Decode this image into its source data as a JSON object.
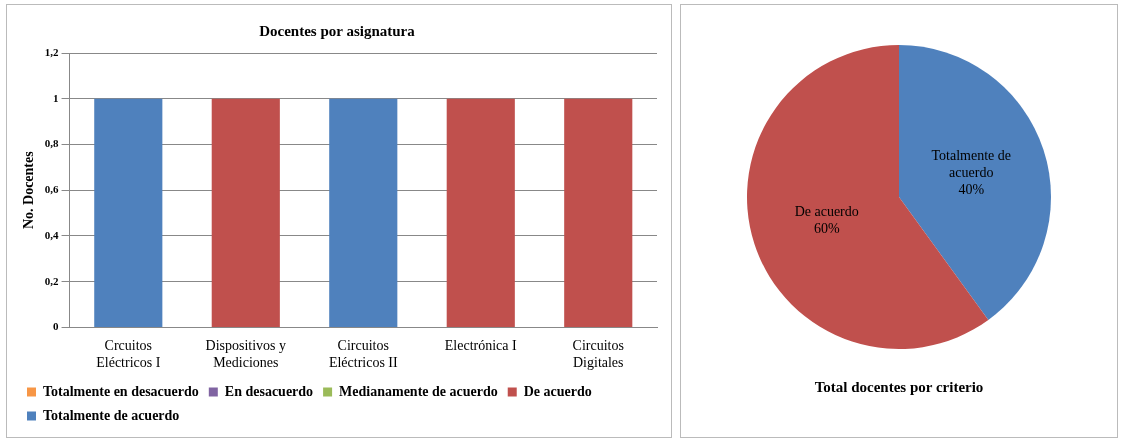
{
  "chart_data": [
    {
      "type": "bar",
      "title": "Docentes por asignatura",
      "ylabel": "No. Docentes",
      "categories": [
        "Crcuitos Eléctricos I",
        "Dispositivos y Mediciones",
        "Circuitos Eléctricos II",
        "Electrónica I",
        "Circuitos Digitales"
      ],
      "stacked": true,
      "series": [
        {
          "name": "Totalmente en desacuerdo",
          "color": "#f79646",
          "values": [
            null,
            null,
            null,
            null,
            null
          ]
        },
        {
          "name": "En desacuerdo",
          "color": "#8064a2",
          "values": [
            null,
            null,
            null,
            null,
            null
          ]
        },
        {
          "name": "Medianamente de acuerdo",
          "color": "#9bbb59",
          "values": [
            null,
            null,
            null,
            null,
            null
          ]
        },
        {
          "name": "De acuerdo",
          "color": "#c0504d",
          "values": [
            null,
            1,
            null,
            1,
            1
          ]
        },
        {
          "name": "Totalmente de acuerdo",
          "color": "#4f81bd",
          "values": [
            1,
            null,
            1,
            null,
            null
          ]
        }
      ],
      "ylim": [
        0,
        1.2
      ],
      "yticks": [
        0,
        {
          "value": 0.2,
          "label": "0,2"
        },
        {
          "value": 0.4,
          "label": "0,4"
        },
        {
          "value": 0.6,
          "label": "0,6"
        },
        {
          "value": 0.8,
          "label": "0,8"
        },
        1,
        {
          "value": 1.2,
          "label": "1,2"
        }
      ],
      "grid": "y",
      "legend": "bottom"
    },
    {
      "type": "pie",
      "title": "Total docentes por criterio",
      "categories": [
        "Totalmente de acuerdo",
        "De acuerdo"
      ],
      "values": [
        40,
        60
      ],
      "value_labels": [
        "40%",
        "60%"
      ],
      "colors": [
        "#4f81bd",
        "#c0504d"
      ]
    }
  ]
}
